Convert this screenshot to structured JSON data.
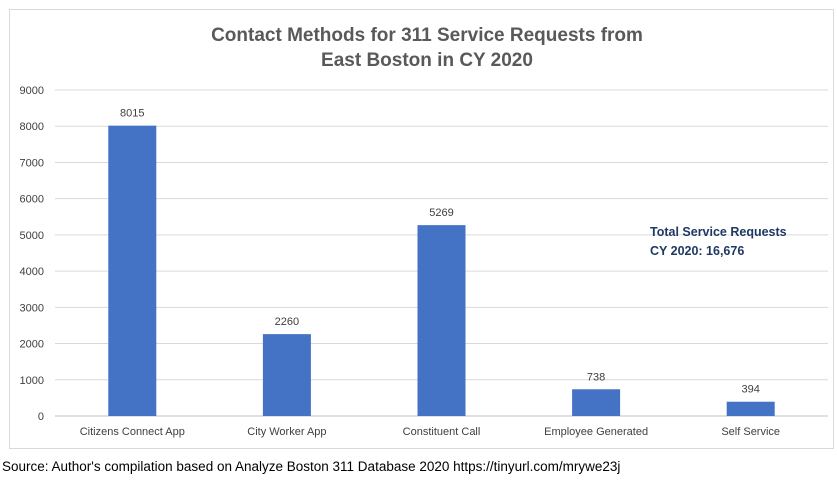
{
  "chart_data": {
    "type": "bar",
    "title_lines": [
      "Contact Methods for 311 Service Requests from",
      "East Boston in CY 2020"
    ],
    "categories": [
      "Citizens Connect App",
      "City Worker App",
      "Constituent Call",
      "Employee Generated",
      "Self Service"
    ],
    "values": [
      8015,
      2260,
      5269,
      738,
      394
    ],
    "ylim": [
      0,
      9000
    ],
    "yticks": [
      0,
      1000,
      2000,
      3000,
      4000,
      5000,
      6000,
      7000,
      8000,
      9000
    ],
    "grid": true,
    "bar_color": "#4472c4",
    "annotation_lines": [
      "Total Service Requests",
      "CY 2020: 16,676"
    ]
  },
  "source": "Source: Author's compilation based on Analyze Boston 311 Database 2020 https://tinyurl.com/mrywe23j"
}
